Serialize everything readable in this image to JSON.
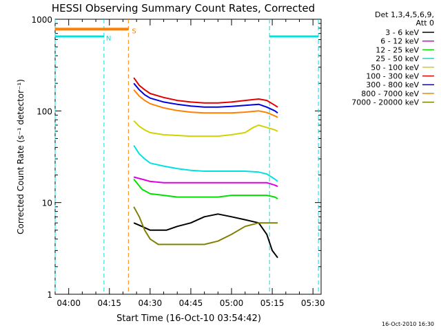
{
  "chart_data": {
    "type": "line",
    "title": "HESSI Observing Summary Count Rates, Corrected",
    "xlabel": "Start Time (16-Oct-10 03:54:42)",
    "ylabel": "Corrected Count Rate (s⁻¹ detector⁻¹)",
    "y_scale": "log",
    "ylim": [
      1,
      1000
    ],
    "xlim": [
      "03:55",
      "05:33"
    ],
    "x_tick_labels": [
      "04:00",
      "04:15",
      "04:30",
      "04:45",
      "05:00",
      "05:15",
      "05:30"
    ],
    "y_tick_labels": [
      "1",
      "10",
      "100",
      "1000"
    ],
    "legend_header": [
      "Det 1,3,4,5,6,9,",
      "Att 0"
    ],
    "legend_position": "right",
    "timestamp": "16-Oct-2010 16:30",
    "series": [
      {
        "name": "3 - 6 keV",
        "color": "#000000",
        "x": [
          "04:24",
          "04:27",
          "04:30",
          "04:33",
          "04:36",
          "04:40",
          "04:45",
          "04:50",
          "04:55",
          "05:00",
          "05:05",
          "05:10",
          "05:13",
          "05:15",
          "05:17"
        ],
        "y": [
          6,
          5.5,
          5,
          5,
          5,
          5.5,
          6,
          7,
          7.5,
          7,
          6.5,
          6,
          4.5,
          3,
          2.5
        ]
      },
      {
        "name": "6 - 12 keV",
        "color": "#e100e1",
        "x": [
          "04:24",
          "04:27",
          "04:30",
          "04:35",
          "04:40",
          "04:45",
          "04:50",
          "04:55",
          "05:00",
          "05:05",
          "05:10",
          "05:13",
          "05:16",
          "05:17"
        ],
        "y": [
          19,
          18,
          17,
          16.5,
          16.5,
          16.5,
          16.5,
          16.5,
          16.5,
          16.5,
          16.5,
          16.5,
          15.5,
          15
        ]
      },
      {
        "name": "12 - 25 keV",
        "color": "#00e100",
        "x": [
          "04:24",
          "04:27",
          "04:30",
          "04:35",
          "04:40",
          "04:45",
          "04:50",
          "04:55",
          "05:00",
          "05:05",
          "05:10",
          "05:13",
          "05:16",
          "05:17"
        ],
        "y": [
          18,
          14,
          12.5,
          12,
          11.5,
          11.5,
          11.5,
          11.5,
          12,
          12,
          12,
          12,
          11.5,
          11
        ]
      },
      {
        "name": "25 - 50 keV",
        "color": "#00e1e1",
        "x": [
          "04:24",
          "04:26",
          "04:28",
          "04:30",
          "04:35",
          "04:40",
          "04:45",
          "04:50",
          "04:55",
          "05:00",
          "05:05",
          "05:10",
          "05:13",
          "05:16",
          "05:17"
        ],
        "y": [
          42,
          34,
          30,
          27,
          25,
          23.5,
          22.5,
          22,
          22,
          22,
          22,
          21.5,
          20.5,
          18,
          17
        ]
      },
      {
        "name": "50 - 100 keV",
        "color": "#d2d200",
        "x": [
          "04:24",
          "04:26",
          "04:28",
          "04:30",
          "04:35",
          "04:40",
          "04:45",
          "04:50",
          "04:55",
          "05:00",
          "05:05",
          "05:08",
          "05:10",
          "05:13",
          "05:16",
          "05:17"
        ],
        "y": [
          78,
          68,
          62,
          58,
          55,
          54,
          53,
          53,
          53,
          55,
          58,
          66,
          70,
          66,
          62,
          60
        ]
      },
      {
        "name": "100 - 300 keV",
        "color": "#e10000",
        "x": [
          "04:24",
          "04:26",
          "04:28",
          "04:30",
          "04:35",
          "04:40",
          "04:45",
          "04:50",
          "04:55",
          "05:00",
          "05:05",
          "05:10",
          "05:13",
          "05:16",
          "05:17"
        ],
        "y": [
          230,
          190,
          170,
          155,
          140,
          130,
          125,
          122,
          122,
          125,
          130,
          135,
          130,
          115,
          110
        ]
      },
      {
        "name": "300 - 800 keV",
        "color": "#0000e1",
        "x": [
          "04:24",
          "04:26",
          "04:28",
          "04:30",
          "04:35",
          "04:40",
          "04:45",
          "04:50",
          "04:55",
          "05:00",
          "05:05",
          "05:10",
          "05:13",
          "05:16",
          "05:17"
        ],
        "y": [
          200,
          170,
          150,
          138,
          125,
          118,
          113,
          110,
          110,
          112,
          115,
          118,
          110,
          100,
          95
        ]
      },
      {
        "name": "800 - 7000 keV",
        "color": "#ff8000",
        "x": [
          "04:24",
          "04:26",
          "04:28",
          "04:30",
          "04:35",
          "04:40",
          "04:45",
          "04:50",
          "04:55",
          "05:00",
          "05:05",
          "05:10",
          "05:13",
          "05:16",
          "05:17"
        ],
        "y": [
          170,
          145,
          130,
          120,
          108,
          101,
          97,
          95,
          95,
          95,
          97,
          100,
          96,
          88,
          85
        ]
      },
      {
        "name": "7000 - 20000 keV",
        "color": "#808000",
        "x": [
          "04:24",
          "04:26",
          "04:28",
          "04:30",
          "04:33",
          "04:36",
          "04:40",
          "04:45",
          "04:50",
          "04:55",
          "05:00",
          "05:05",
          "05:10",
          "05:15",
          "05:17"
        ],
        "y": [
          9,
          7,
          5,
          4,
          3.5,
          3.5,
          3.5,
          3.5,
          3.5,
          3.8,
          4.5,
          5.5,
          6,
          6,
          6
        ]
      }
    ],
    "flags": [
      {
        "label": "N",
        "color": "#00e1e1",
        "level": 650,
        "segments": [
          [
            "03:55",
            "04:13"
          ],
          [
            "05:14",
            "05:32"
          ]
        ],
        "boundaries": [
          "03:55",
          "04:13",
          "05:14",
          "05:32"
        ]
      },
      {
        "label": "S",
        "color": "#ff8000",
        "level": 780,
        "segments": [
          [
            "03:55",
            "04:22"
          ]
        ],
        "boundaries": [
          "04:22"
        ]
      }
    ]
  }
}
